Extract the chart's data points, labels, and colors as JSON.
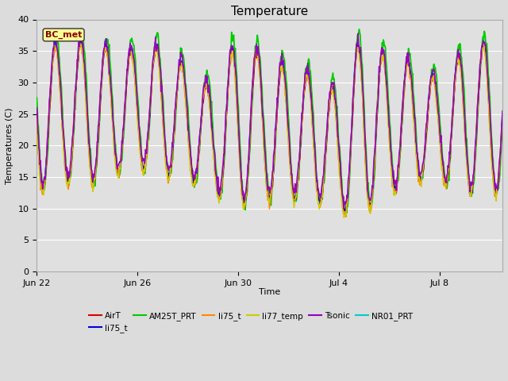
{
  "title": "Temperature",
  "xlabel": "Time",
  "ylabel": "Temperatures (C)",
  "ylim": [
    0,
    40
  ],
  "yticks": [
    0,
    5,
    10,
    15,
    20,
    25,
    30,
    35,
    40
  ],
  "xtick_labels": [
    "Jun 22",
    "Jun 26",
    "Jun 30",
    "Jul 4",
    "Jul 8"
  ],
  "annotation_text": "BC_met",
  "outer_bg": "#dcdcdc",
  "plot_bg": "#e0e0e0",
  "series": [
    {
      "label": "AirT",
      "color": "#dd0000",
      "lw": 1.0,
      "zorder": 4
    },
    {
      "label": "li75_t",
      "color": "#0000dd",
      "lw": 1.0,
      "zorder": 4
    },
    {
      "label": "AM25T_PRT",
      "color": "#00cc00",
      "lw": 1.3,
      "zorder": 3
    },
    {
      "label": "li75_t",
      "color": "#ff8800",
      "lw": 1.0,
      "zorder": 4
    },
    {
      "label": "li77_temp",
      "color": "#cccc00",
      "lw": 1.0,
      "zorder": 4
    },
    {
      "label": "Tsonic",
      "color": "#9900bb",
      "lw": 1.2,
      "zorder": 5
    },
    {
      "label": "NR01_PRT",
      "color": "#00cccc",
      "lw": 1.3,
      "zorder": 2
    }
  ],
  "legend_ncol": 6
}
